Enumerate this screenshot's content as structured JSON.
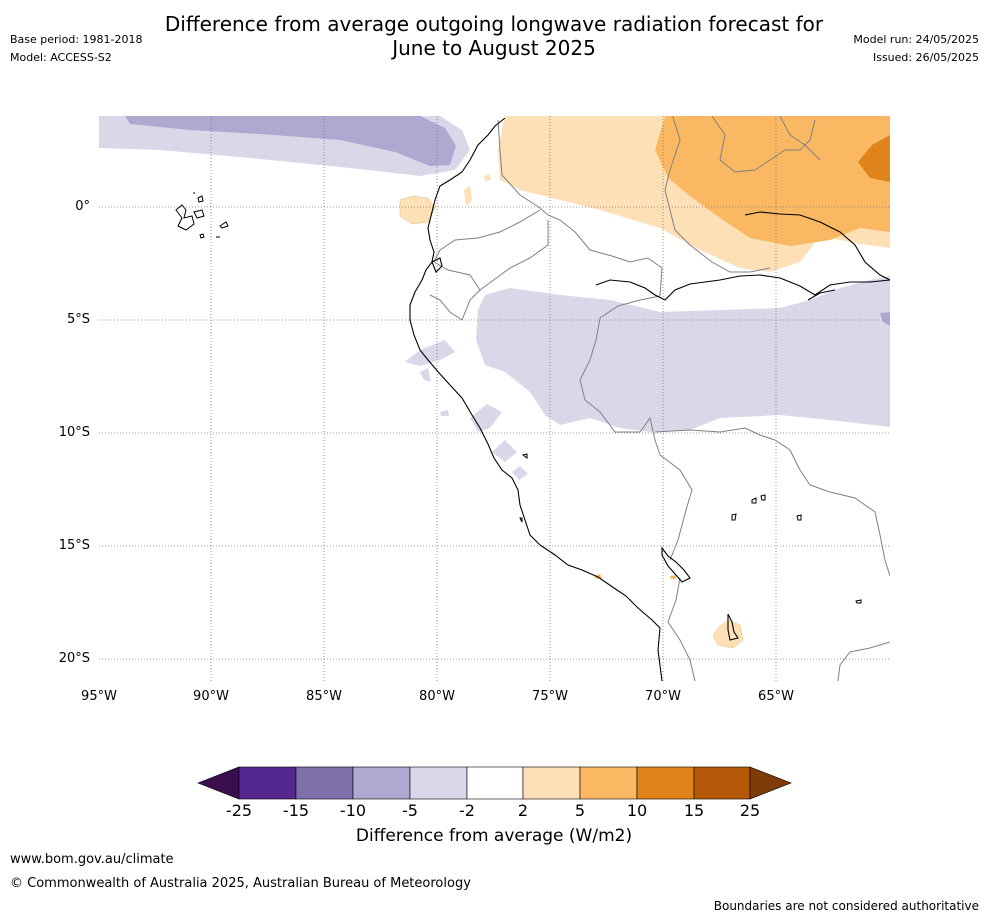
{
  "header": {
    "title_line1": "Difference from average outgoing longwave radiation forecast for",
    "title_line2": "June to August 2025",
    "base_period": "Base period: 1981-2018",
    "model": "Model: ACCESS-S2",
    "model_run": "Model run: 24/05/2025",
    "issued": "Issued: 26/05/2025"
  },
  "map": {
    "lat_ticks": [
      "0°",
      "5°S",
      "10°S",
      "15°S",
      "20°S"
    ],
    "lon_ticks": [
      "95°W",
      "90°W",
      "85°W",
      "80°W",
      "75°W",
      "70°W",
      "65°W"
    ],
    "lat_range": [
      -21,
      4
    ],
    "lon_range": [
      -95,
      -60
    ]
  },
  "legend": {
    "label": "Difference from average (W/m2)",
    "ticks": [
      "-25",
      "-15",
      "-10",
      "-5",
      "-2",
      "2",
      "5",
      "10",
      "15",
      "25"
    ],
    "colors": [
      "#3b0f4f",
      "#54278f",
      "#7f6fab",
      "#b1a8d2",
      "#d8d8e9",
      "#ffffff",
      "#fde0b6",
      "#fbb862",
      "#e08319",
      "#b35807",
      "#7f3b08"
    ]
  },
  "footer": {
    "url": "www.bom.gov.au/climate",
    "copyright": "© Commonwealth of Australia 2025, Australian Bureau of Meteorology",
    "disclaimer": "Boundaries are not considered authoritative"
  }
}
